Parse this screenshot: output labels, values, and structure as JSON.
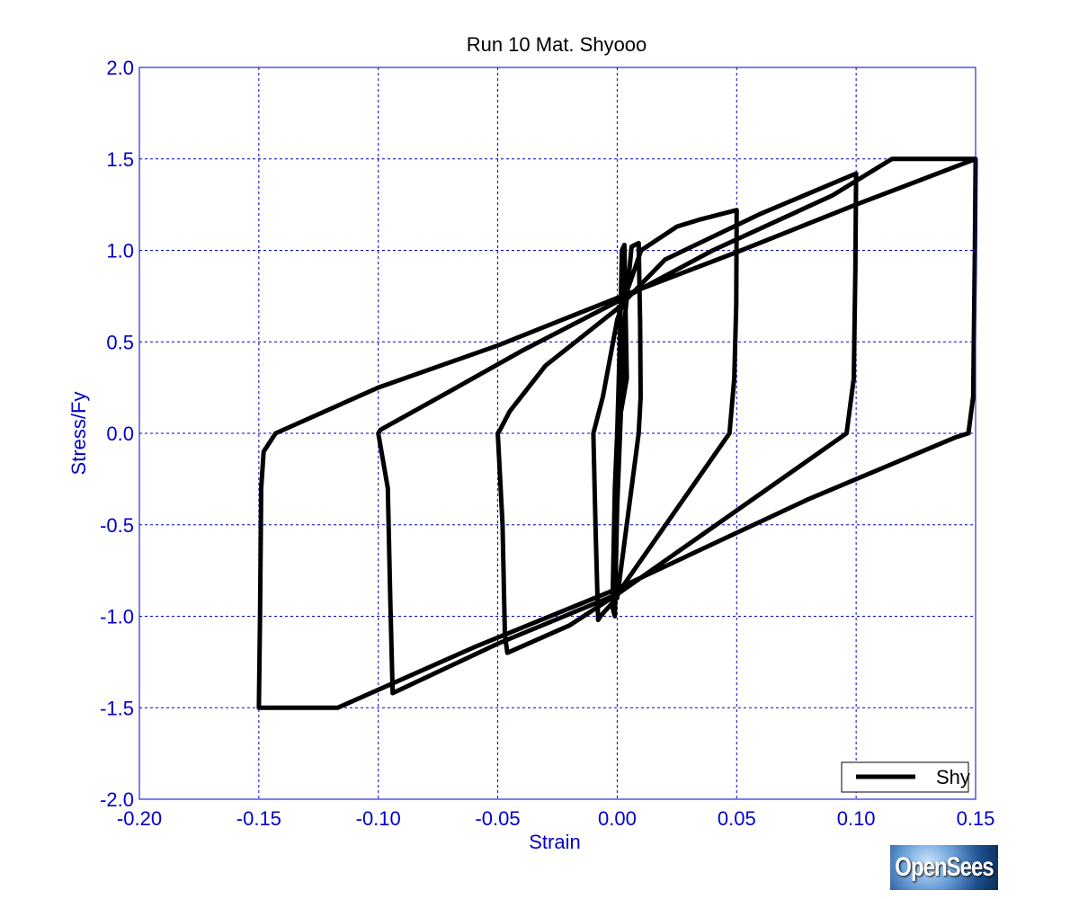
{
  "chart_data": {
    "type": "line",
    "title": "Run 10    Mat. Shyooo",
    "xlabel": "Strain",
    "ylabel": "Stress/Fy",
    "xlim": [
      -0.2,
      0.15
    ],
    "ylim": [
      -2.0,
      2.0
    ],
    "xticks": [
      -0.2,
      -0.15,
      -0.1,
      -0.05,
      0.0,
      0.05,
      0.1,
      0.15
    ],
    "xtick_labels": [
      "-0.20",
      "-0.15",
      "-0.10",
      "-0.05",
      "0.00",
      "0.05",
      "0.10",
      "0.15"
    ],
    "yticks": [
      2.0,
      1.5,
      1.0,
      0.5,
      0.0,
      -0.5,
      -1.0,
      -1.5,
      -2.0
    ],
    "ytick_labels": [
      "2.0",
      "1.5",
      "1.0",
      "0.5",
      "0.0",
      "-0.5",
      "-1.0",
      "-1.5",
      "-2.0"
    ],
    "grid": true,
    "legend_position": "bottom-right",
    "series": [
      {
        "name": "Shy",
        "color": "#000000",
        "x": [
          0,
          0.001,
          0.002,
          0.003,
          0.004,
          0.0,
          -0.001,
          -0.002,
          -0.001,
          0.0,
          0.003,
          0.006,
          0.009,
          0.0096,
          0.0098,
          0.009,
          0.0,
          -0.005,
          -0.007,
          -0.008,
          -0.009,
          -0.01,
          -0.006,
          0.0,
          0.01,
          0.025,
          0.035,
          0.05,
          0.0498,
          0.049,
          0.047,
          0.0,
          -0.02,
          -0.046,
          -0.047,
          -0.048,
          -0.05,
          -0.049,
          -0.045,
          -0.03,
          0.0,
          0.02,
          0.06,
          0.1,
          0.0997,
          0.099,
          0.096,
          0.06,
          0.0,
          -0.05,
          -0.094,
          -0.095,
          -0.096,
          -0.1,
          -0.099,
          -0.07,
          -0.04,
          0.0,
          0.04,
          0.09,
          0.115,
          0.12,
          0.15,
          0.1497,
          0.149,
          0.147,
          0.142,
          0.08,
          0.0,
          -0.06,
          -0.117,
          -0.15,
          -0.1495,
          -0.149,
          -0.148,
          -0.143,
          -0.1,
          -0.05,
          0.0,
          0.05,
          0.1,
          0.15
        ],
        "y": [
          0,
          0.45,
          1.0,
          1.03,
          0.3,
          0.0,
          -0.3,
          -0.95,
          -1.0,
          -0.4,
          0.6,
          1.02,
          1.04,
          0.6,
          0.2,
          0.0,
          -0.9,
          -0.97,
          -1.0,
          -1.02,
          -0.55,
          0.0,
          0.2,
          0.62,
          1.0,
          1.13,
          1.17,
          1.22,
          0.7,
          0.3,
          0.0,
          -0.88,
          -1.05,
          -1.2,
          -1.1,
          -0.5,
          0.0,
          0.02,
          0.12,
          0.37,
          0.68,
          0.95,
          1.2,
          1.42,
          0.9,
          0.3,
          0.0,
          -0.33,
          -0.88,
          -1.15,
          -1.42,
          -0.9,
          -0.3,
          0.0,
          0.02,
          0.23,
          0.45,
          0.72,
          1.0,
          1.3,
          1.5,
          1.5,
          1.5,
          1.0,
          0.2,
          0.0,
          -0.02,
          -0.36,
          -0.85,
          -1.17,
          -1.5,
          -1.5,
          -1.0,
          -0.3,
          -0.1,
          0.0,
          0.25,
          0.48,
          0.74,
          0.99,
          1.25,
          1.5
        ]
      }
    ]
  },
  "logo": {
    "text": "OpenSees"
  }
}
